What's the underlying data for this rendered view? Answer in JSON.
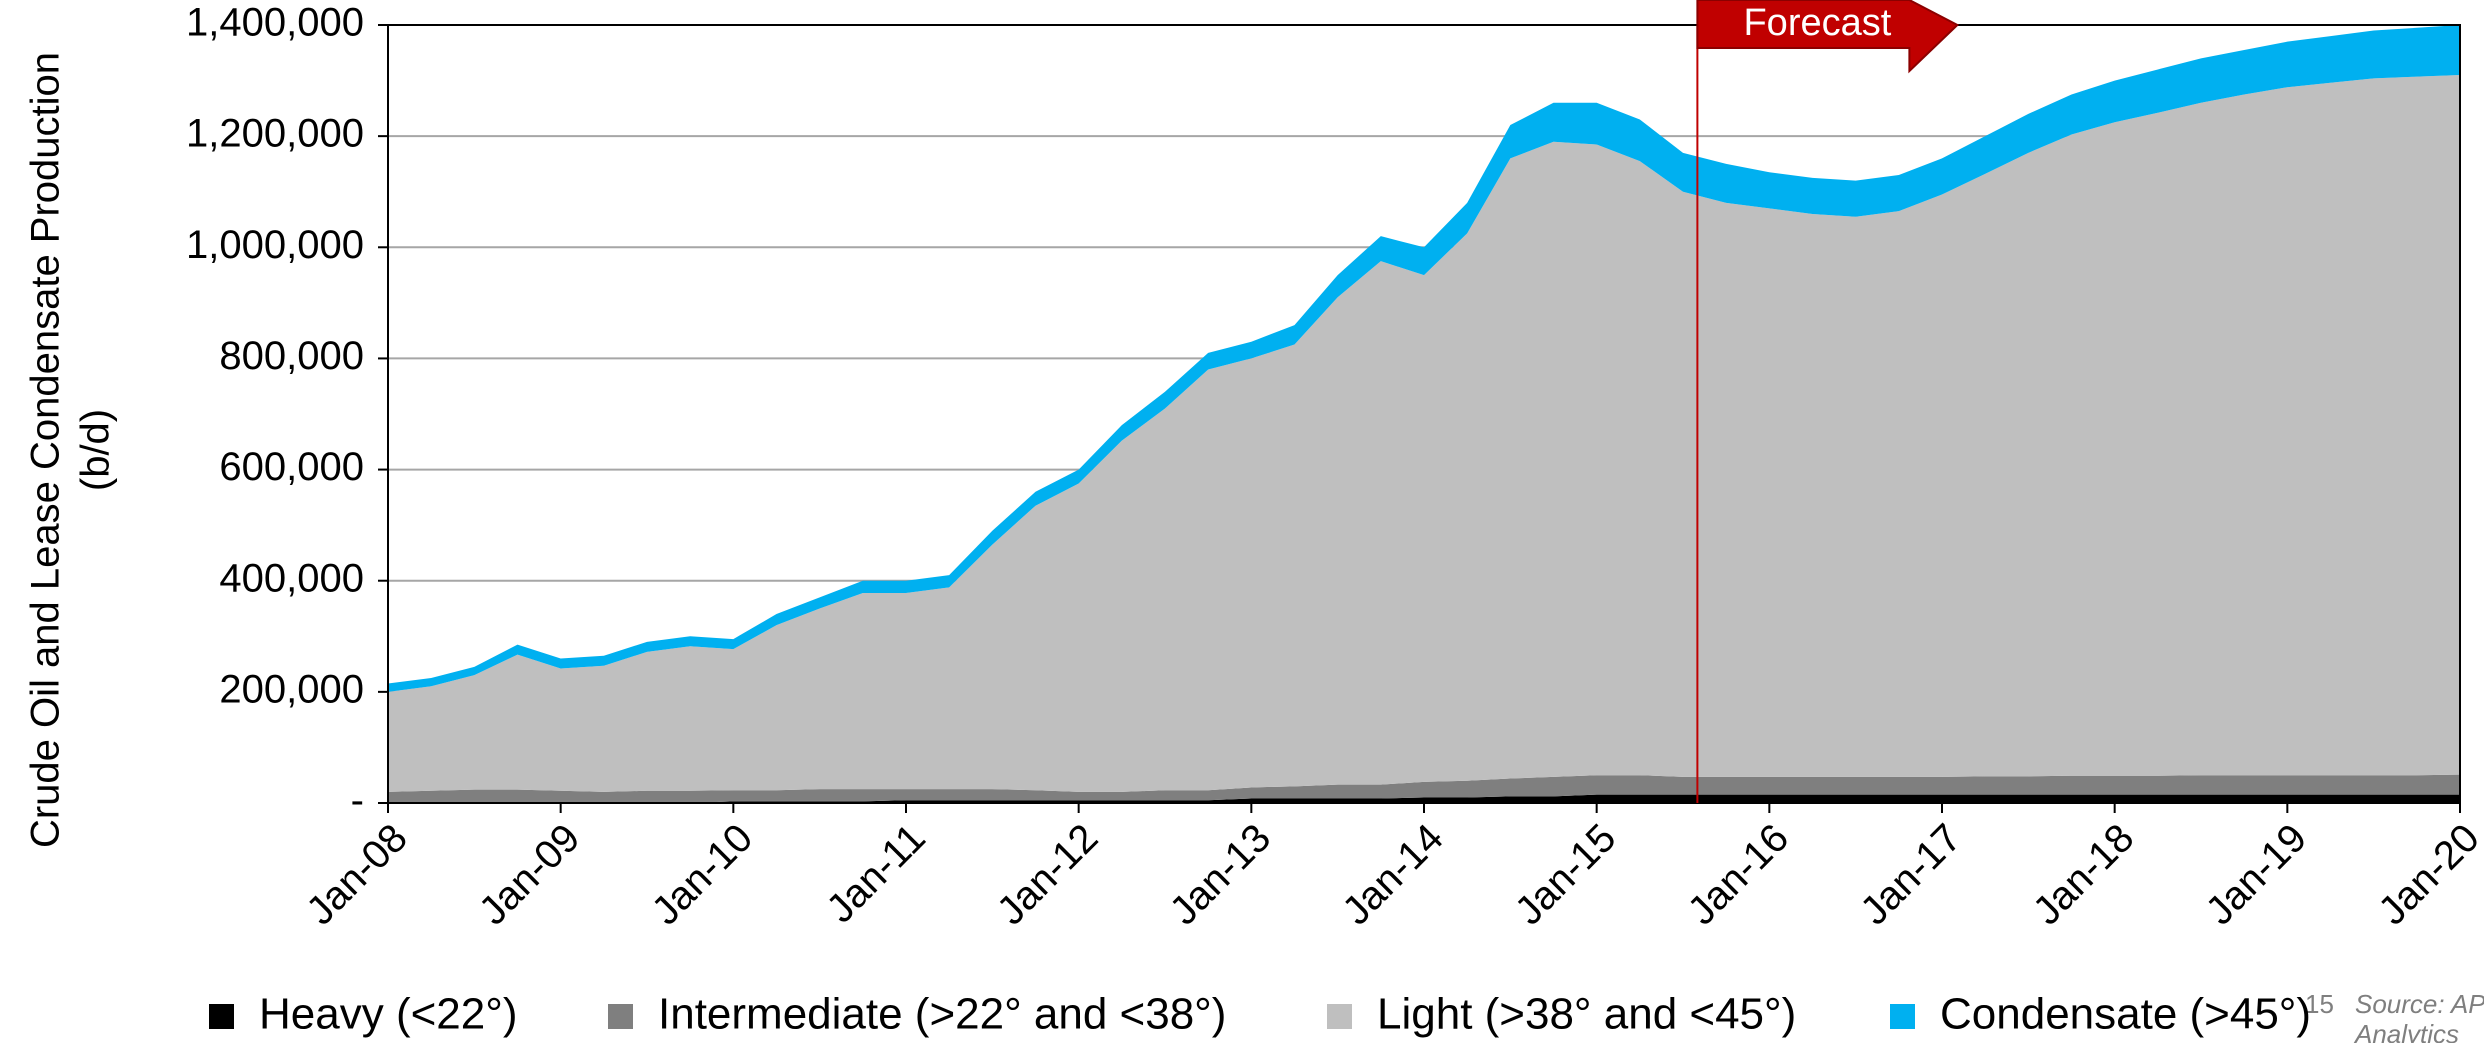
{
  "chart_data": {
    "type": "stacked_area",
    "ylabel": "Crude Oil and Lease Condensate Production",
    "ylabel2": "(b/d)",
    "annotation": "Forecast",
    "forecast_start": "2015-08",
    "x": [
      "2008-01",
      "2008-04",
      "2008-07",
      "2008-10",
      "2009-01",
      "2009-04",
      "2009-07",
      "2009-10",
      "2010-01",
      "2010-04",
      "2010-07",
      "2010-10",
      "2011-01",
      "2011-04",
      "2011-07",
      "2011-10",
      "2012-01",
      "2012-04",
      "2012-07",
      "2012-10",
      "2013-01",
      "2013-04",
      "2013-07",
      "2013-10",
      "2014-01",
      "2014-04",
      "2014-07",
      "2014-10",
      "2015-01",
      "2015-04",
      "2015-07",
      "2015-10",
      "2016-01",
      "2016-04",
      "2016-07",
      "2016-10",
      "2017-01",
      "2017-04",
      "2017-07",
      "2017-10",
      "2018-01",
      "2018-04",
      "2018-07",
      "2018-10",
      "2019-01",
      "2019-04",
      "2019-07",
      "2019-10",
      "2020-01"
    ],
    "series": [
      {
        "name": "Heavy (<22°)",
        "color": "#000000",
        "values": [
          0,
          0,
          0,
          0,
          0,
          0,
          0,
          0,
          3000,
          3000,
          3000,
          3000,
          5000,
          5000,
          5000,
          5000,
          5000,
          5000,
          5000,
          5000,
          8000,
          8000,
          8000,
          8000,
          10000,
          10000,
          12000,
          12000,
          15000,
          15000,
          15000,
          15000,
          15000,
          15000,
          15000,
          15000,
          15000,
          15000,
          15000,
          15000,
          15000,
          15000,
          15000,
          15000,
          15000,
          15000,
          15000,
          15000,
          15000
        ]
      },
      {
        "name": "Intermediate (>22° and <38°)",
        "color": "#7f7f7f",
        "values": [
          20000,
          22000,
          24000,
          24000,
          22000,
          20000,
          22000,
          22000,
          20000,
          20000,
          22000,
          22000,
          20000,
          20000,
          20000,
          18000,
          15000,
          15000,
          18000,
          18000,
          20000,
          22000,
          25000,
          25000,
          28000,
          30000,
          32000,
          35000,
          35000,
          35000,
          32000,
          32000,
          32000,
          32000,
          32000,
          32000,
          32000,
          33000,
          33000,
          34000,
          34000,
          34000,
          35000,
          35000,
          35000,
          35000,
          35000,
          35000,
          36000
        ]
      },
      {
        "name": "Light (>38° and <45°)",
        "color": "#bfbfbf",
        "values": [
          180000,
          188000,
          206000,
          243000,
          220000,
          227000,
          250000,
          260000,
          254000,
          297000,
          325000,
          353000,
          353000,
          363000,
          440000,
          512000,
          555000,
          632000,
          687000,
          757000,
          772000,
          795000,
          877000,
          942000,
          912000,
          985000,
          1116000,
          1143000,
          1135000,
          1105000,
          1053000,
          1033000,
          1023000,
          1013000,
          1008000,
          1018000,
          1048000,
          1084000,
          1122000,
          1154000,
          1176000,
          1193000,
          1210000,
          1225000,
          1238000,
          1246000,
          1254000,
          1257000,
          1259000
        ]
      },
      {
        "name": "Condensate (>45°)",
        "color": "#00b0f0",
        "values": [
          15000,
          15000,
          15000,
          18000,
          18000,
          18000,
          18000,
          18000,
          18000,
          20000,
          20000,
          22000,
          22000,
          22000,
          25000,
          25000,
          25000,
          28000,
          30000,
          30000,
          30000,
          35000,
          40000,
          45000,
          50000,
          55000,
          60000,
          70000,
          75000,
          75000,
          70000,
          70000,
          65000,
          65000,
          65000,
          65000,
          65000,
          68000,
          70000,
          72000,
          75000,
          78000,
          80000,
          80000,
          82000,
          84000,
          86000,
          88000,
          90000
        ]
      }
    ],
    "xlim": [
      "2008-01",
      "2020-01"
    ],
    "xticks": [
      {
        "value": "2008-01",
        "label": "Jan-08"
      },
      {
        "value": "2009-01",
        "label": "Jan-09"
      },
      {
        "value": "2010-01",
        "label": "Jan-10"
      },
      {
        "value": "2011-01",
        "label": "Jan-11"
      },
      {
        "value": "2012-01",
        "label": "Jan-12"
      },
      {
        "value": "2013-01",
        "label": "Jan-13"
      },
      {
        "value": "2014-01",
        "label": "Jan-14"
      },
      {
        "value": "2015-01",
        "label": "Jan-15"
      },
      {
        "value": "2016-01",
        "label": "Jan-16"
      },
      {
        "value": "2017-01",
        "label": "Jan-17"
      },
      {
        "value": "2018-01",
        "label": "Jan-18"
      },
      {
        "value": "2019-01",
        "label": "Jan-19"
      },
      {
        "value": "2020-01",
        "label": "Jan-20"
      }
    ],
    "ylim": [
      0,
      1400000
    ],
    "yticks": [
      {
        "value": 0,
        "label": "-"
      },
      {
        "value": 200000,
        "label": "200,000"
      },
      {
        "value": 400000,
        "label": "400,000"
      },
      {
        "value": 600000,
        "label": "600,000"
      },
      {
        "value": 800000,
        "label": "800,000"
      },
      {
        "value": 1000000,
        "label": "1,000,000"
      },
      {
        "value": 1200000,
        "label": "1,200,000"
      },
      {
        "value": 1400000,
        "label": "1,400,000"
      }
    ],
    "grid": true
  },
  "page_number": "15",
  "source": "Source: AP",
  "source_line2": "Analytics"
}
